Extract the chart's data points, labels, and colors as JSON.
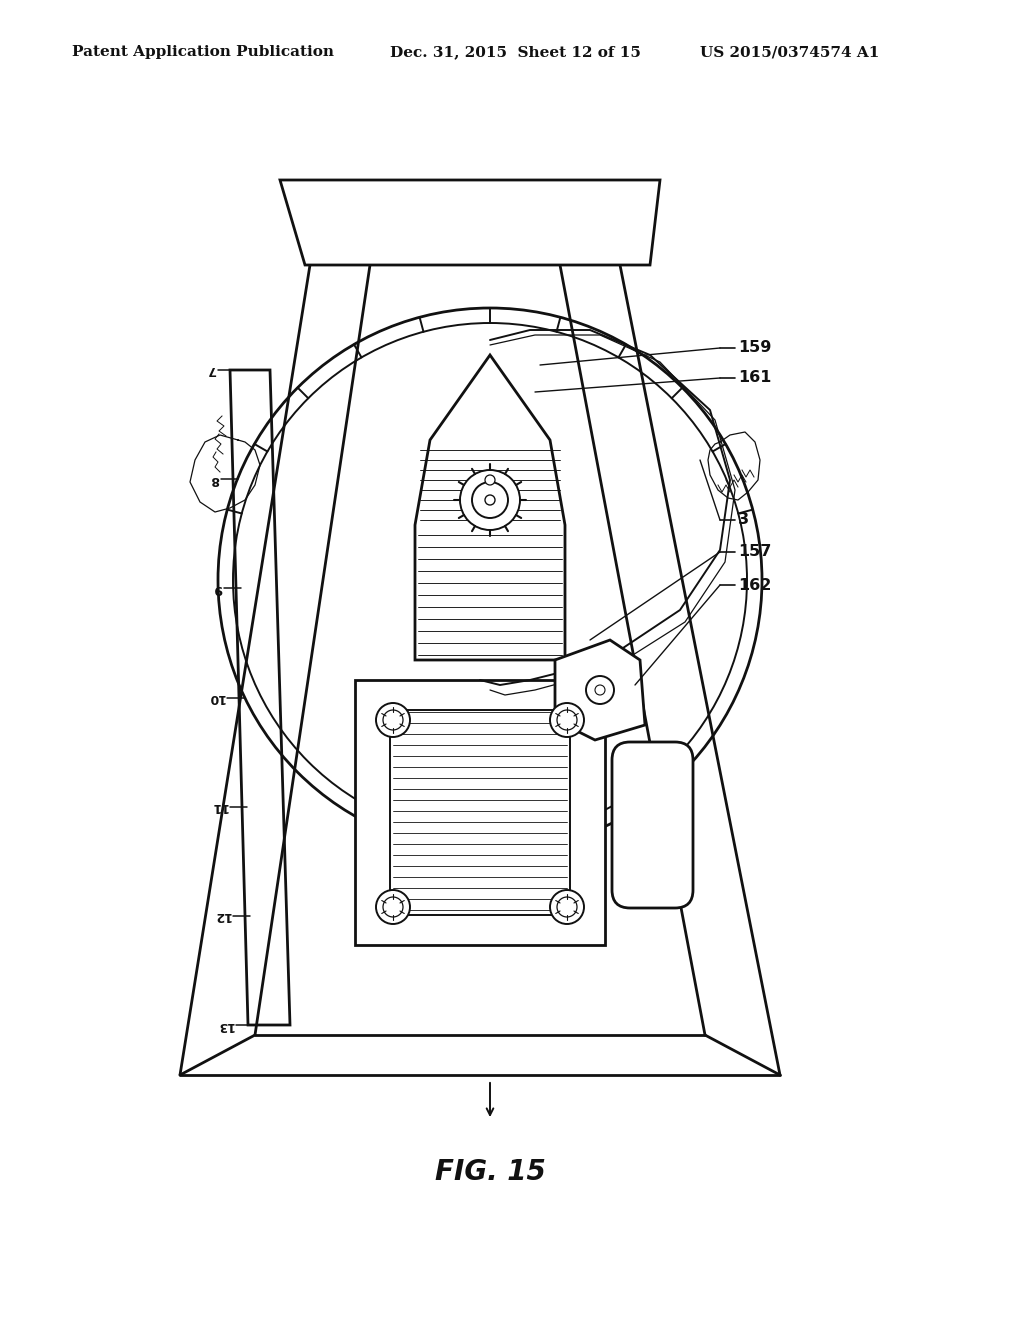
{
  "background_color": "#ffffff",
  "header_left": "Patent Application Publication",
  "header_center": "Dec. 31, 2015  Sheet 12 of 15",
  "header_right": "US 2015/0374574 A1",
  "figure_label": "FIG. 15",
  "line_color": "#111111",
  "scale_numbers": [
    "7",
    "8",
    "9",
    "10",
    "11",
    "12",
    "13"
  ]
}
